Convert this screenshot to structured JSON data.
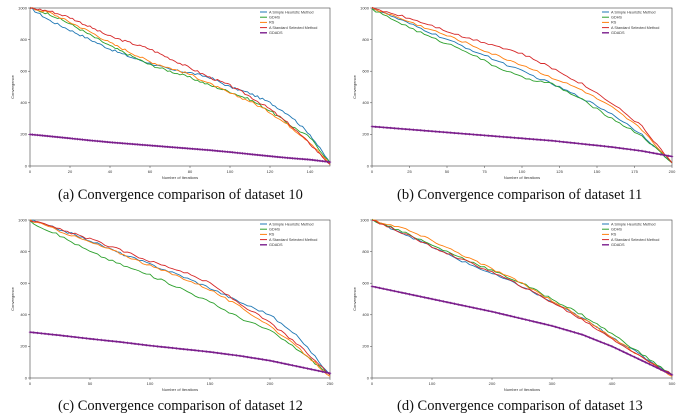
{
  "chart_data": [
    {
      "type": "line",
      "title": "Convergence comparison of dataset 10",
      "caption": "(a) Convergence comparison of dataset 10",
      "xlabel": "Number of Iterations",
      "ylabel": "Convergence",
      "xlim": [
        0,
        150
      ],
      "ylim": [
        0,
        1000
      ],
      "xticks": [
        "0",
        "20",
        "40",
        "60",
        "80",
        "100",
        "120",
        "140"
      ],
      "yticks": [
        "0",
        "200",
        "400",
        "600",
        "800",
        "1000"
      ],
      "x": [
        0,
        10,
        20,
        30,
        40,
        50,
        60,
        70,
        80,
        90,
        100,
        110,
        120,
        130,
        140,
        150
      ],
      "series": [
        {
          "name": "A Simple Heuristic Method",
          "color": "#1f77b4",
          "values": [
            1000,
            920,
            860,
            800,
            740,
            690,
            650,
            610,
            590,
            560,
            500,
            460,
            400,
            320,
            200,
            20
          ]
        },
        {
          "name": "GDHS",
          "color": "#2ca02c",
          "values": [
            1000,
            960,
            900,
            830,
            760,
            700,
            640,
            600,
            560,
            510,
            470,
            420,
            350,
            260,
            180,
            20
          ]
        },
        {
          "name": "RS",
          "color": "#ff7f0e",
          "values": [
            1000,
            970,
            910,
            850,
            780,
            720,
            660,
            620,
            580,
            520,
            460,
            410,
            340,
            250,
            150,
            10
          ]
        },
        {
          "name": "A Standard Selected Method",
          "color": "#d62728",
          "values": [
            1000,
            980,
            940,
            880,
            820,
            780,
            740,
            680,
            620,
            560,
            510,
            440,
            360,
            260,
            140,
            10
          ]
        },
        {
          "name": "GDADS",
          "color": "#7b1e8c",
          "marker": "+",
          "values": [
            200,
            188,
            175,
            162,
            150,
            140,
            130,
            120,
            110,
            100,
            88,
            75,
            62,
            50,
            40,
            25
          ]
        }
      ]
    },
    {
      "type": "line",
      "title": "Convergence comparison of dataset 11",
      "caption": "(b) Convergence comparison of dataset 11",
      "xlabel": "Number of Iterations",
      "ylabel": "Convergence",
      "xlim": [
        0,
        200
      ],
      "ylim": [
        0,
        1000
      ],
      "xticks": [
        "0",
        "25",
        "50",
        "75",
        "100",
        "125",
        "150",
        "175",
        "200"
      ],
      "yticks": [
        "0",
        "200",
        "400",
        "600",
        "800",
        "1000"
      ],
      "x": [
        0,
        20,
        40,
        60,
        80,
        100,
        120,
        140,
        160,
        180,
        200
      ],
      "series": [
        {
          "name": "A Simple Heuristic Method",
          "color": "#1f77b4",
          "values": [
            1000,
            920,
            840,
            760,
            680,
            600,
            520,
            430,
            330,
            200,
            20
          ]
        },
        {
          "name": "GDHS",
          "color": "#2ca02c",
          "values": [
            990,
            900,
            810,
            740,
            640,
            560,
            520,
            420,
            300,
            190,
            20
          ]
        },
        {
          "name": "RS",
          "color": "#ff7f0e",
          "values": [
            1000,
            930,
            860,
            790,
            710,
            640,
            560,
            480,
            370,
            230,
            20
          ]
        },
        {
          "name": "A Standard Selected Method",
          "color": "#d62728",
          "values": [
            1000,
            950,
            890,
            820,
            770,
            710,
            620,
            520,
            400,
            250,
            20
          ]
        },
        {
          "name": "GDADS",
          "color": "#7b1e8c",
          "marker": "+",
          "values": [
            250,
            235,
            220,
            205,
            190,
            175,
            160,
            140,
            120,
            95,
            60
          ]
        }
      ]
    },
    {
      "type": "line",
      "title": "Convergence comparison of dataset 12",
      "caption": "(c) Convergence comparison of dataset 12",
      "xlabel": "Number of Iterations",
      "ylabel": "Convergence",
      "xlim": [
        0,
        250
      ],
      "ylim": [
        0,
        1000
      ],
      "xticks": [
        "0",
        "50",
        "100",
        "150",
        "200",
        "250"
      ],
      "yticks": [
        "0",
        "200",
        "400",
        "600",
        "800",
        "1000"
      ],
      "x": [
        0,
        25,
        50,
        75,
        100,
        125,
        150,
        175,
        200,
        225,
        250
      ],
      "series": [
        {
          "name": "A Simple Heuristic Method",
          "color": "#1f77b4",
          "values": [
            1000,
            940,
            870,
            790,
            720,
            650,
            570,
            480,
            400,
            250,
            20
          ]
        },
        {
          "name": "GDHS",
          "color": "#2ca02c",
          "values": [
            990,
            900,
            800,
            720,
            650,
            570,
            480,
            380,
            300,
            170,
            20
          ]
        },
        {
          "name": "RS",
          "color": "#ff7f0e",
          "values": [
            1000,
            930,
            860,
            790,
            710,
            640,
            560,
            450,
            330,
            180,
            10
          ]
        },
        {
          "name": "A Standard Selected Method",
          "color": "#d62728",
          "values": [
            1000,
            940,
            880,
            810,
            740,
            680,
            600,
            470,
            350,
            200,
            20
          ]
        },
        {
          "name": "GDADS",
          "color": "#7b1e8c",
          "marker": "+",
          "values": [
            290,
            270,
            248,
            228,
            205,
            185,
            165,
            140,
            110,
            70,
            30
          ]
        }
      ]
    },
    {
      "type": "line",
      "title": "Convergence comparison of dataset 13",
      "caption": "(d) Convergence comparison of dataset 13",
      "xlabel": "Number of Iterations",
      "ylabel": "Convergence",
      "xlim": [
        0,
        500
      ],
      "ylim": [
        0,
        1000
      ],
      "xticks": [
        "0",
        "100",
        "200",
        "300",
        "400",
        "500"
      ],
      "yticks": [
        "0",
        "200",
        "400",
        "600",
        "800",
        "1000"
      ],
      "x": [
        0,
        50,
        100,
        150,
        200,
        250,
        300,
        350,
        400,
        450,
        500
      ],
      "series": [
        {
          "name": "A Simple Heuristic Method",
          "color": "#1f77b4",
          "values": [
            1000,
            920,
            830,
            740,
            660,
            580,
            480,
            380,
            260,
            140,
            20
          ]
        },
        {
          "name": "GDHS",
          "color": "#2ca02c",
          "values": [
            1000,
            930,
            840,
            760,
            680,
            600,
            500,
            400,
            280,
            150,
            20
          ]
        },
        {
          "name": "RS",
          "color": "#ff7f0e",
          "values": [
            1000,
            950,
            870,
            780,
            690,
            600,
            490,
            380,
            260,
            130,
            10
          ]
        },
        {
          "name": "A Standard Selected Method",
          "color": "#d62728",
          "values": [
            1000,
            920,
            830,
            750,
            670,
            580,
            480,
            370,
            250,
            130,
            20
          ]
        },
        {
          "name": "GDADS",
          "color": "#7b1e8c",
          "marker": "+",
          "values": [
            580,
            540,
            500,
            460,
            420,
            375,
            330,
            275,
            200,
            110,
            20
          ]
        }
      ]
    }
  ]
}
